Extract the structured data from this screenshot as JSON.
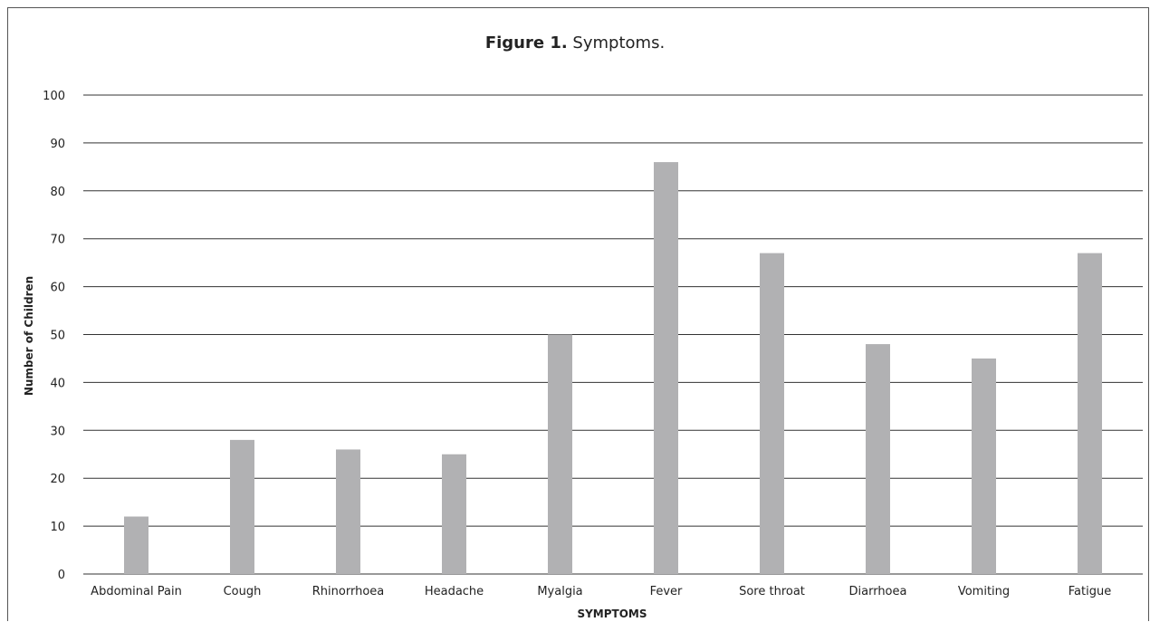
{
  "chart_data": {
    "type": "bar",
    "title_bold": "Figure 1.",
    "title_rest": " Symptoms.",
    "xlabel": "SYMPTOMS",
    "ylabel": "Number of Children",
    "ylim": [
      0,
      100
    ],
    "yticks": [
      "0",
      "10",
      "20",
      "30",
      "40",
      "50",
      "60",
      "70",
      "80",
      "90",
      "100"
    ],
    "categories": [
      "Abdominal Pain",
      "Cough",
      "Rhinorrhoea",
      "Headache",
      "Myalgia",
      "Fever",
      "Sore throat",
      "Diarrhoea",
      "Vomiting",
      "Fatigue"
    ],
    "values": [
      12,
      28,
      26,
      25,
      50,
      86,
      67,
      48,
      45,
      67
    ],
    "grid": true,
    "bar_color": "#b1b1b3",
    "grid_color": "#333333"
  }
}
